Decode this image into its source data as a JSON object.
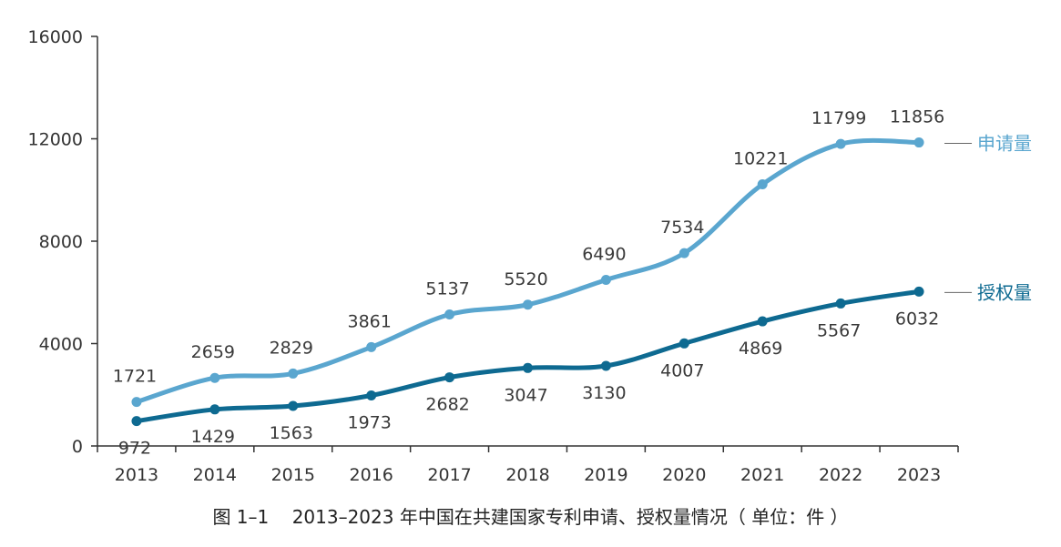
{
  "chart_data": {
    "type": "line",
    "title": "",
    "xlabel": "",
    "ylabel": "",
    "categories": [
      "2013",
      "2014",
      "2015",
      "2016",
      "2017",
      "2018",
      "2019",
      "2020",
      "2021",
      "2022",
      "2023"
    ],
    "ylim": [
      0,
      16000
    ],
    "yticks": [
      0,
      4000,
      8000,
      12000,
      16000
    ],
    "grid": false,
    "legend": "right, at line ends",
    "series": [
      {
        "name": "申请量",
        "color": "#5aa6cf",
        "values": [
          1721,
          2659,
          2829,
          3861,
          5137,
          5520,
          6490,
          7534,
          10221,
          11799,
          11856
        ],
        "label_position": "above"
      },
      {
        "name": "授权量",
        "color": "#0e6a91",
        "values": [
          972,
          1429,
          1563,
          1973,
          2682,
          3047,
          3130,
          4007,
          4869,
          5567,
          6032
        ],
        "label_position": "below"
      }
    ]
  },
  "caption": {
    "figure_no": "图 1–1",
    "text": "2013–2023 年中国在共建国家专利申请、授权量情况（ 单位：件 ）"
  }
}
